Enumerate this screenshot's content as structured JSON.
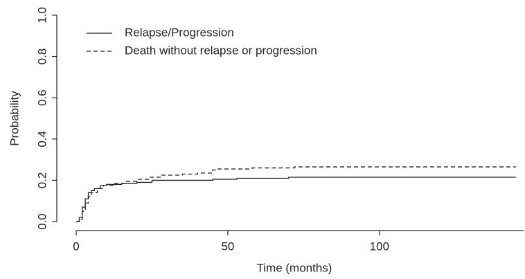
{
  "chart_data": {
    "type": "step",
    "xlabel": "Time (months)",
    "ylabel": "Probability",
    "xlim": [
      -6.4,
      148
    ],
    "ylim": [
      -0.04,
      1.04
    ],
    "xticks": [
      0,
      50,
      100
    ],
    "yticks": [
      {
        "value": 0,
        "label": "0.0"
      },
      {
        "value": 0.2,
        "label": "0.2"
      },
      {
        "value": 0.4,
        "label": "0.4"
      },
      {
        "value": 0.6,
        "label": "0.6"
      },
      {
        "value": 0.8,
        "label": "0.8"
      },
      {
        "value": 1,
        "label": "1.0"
      }
    ],
    "legend": "top-left",
    "series": [
      {
        "name": "Relapse/Progression",
        "color": "#222222",
        "dash": "solid",
        "x": [
          0,
          1,
          2,
          3,
          4,
          5,
          6,
          8,
          10,
          15,
          20,
          25,
          45,
          53,
          70,
          145
        ],
        "values": [
          0,
          0.02,
          0.07,
          0.11,
          0.14,
          0.15,
          0.16,
          0.175,
          0.18,
          0.185,
          0.19,
          0.2,
          0.205,
          0.21,
          0.215,
          0.215
        ]
      },
      {
        "name": "Death without relapse or progression",
        "color": "#222222",
        "dash": "dashed",
        "x": [
          0,
          1,
          2,
          3,
          4,
          5,
          7,
          9,
          12,
          16,
          20,
          24,
          28,
          35,
          40,
          45,
          46,
          58,
          72,
          145
        ],
        "values": [
          0,
          0.01,
          0.05,
          0.09,
          0.12,
          0.14,
          0.16,
          0.175,
          0.185,
          0.195,
          0.205,
          0.215,
          0.225,
          0.23,
          0.235,
          0.25,
          0.255,
          0.26,
          0.265,
          0.265
        ]
      }
    ]
  }
}
